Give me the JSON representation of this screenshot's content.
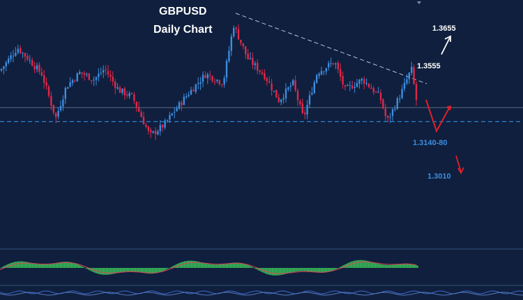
{
  "chart_data": {
    "type": "candlestick",
    "symbol": "GBPUSD",
    "title": "GBPUSD",
    "subtitle": "Daily Chart",
    "ylim": [
      1.29,
      1.378
    ],
    "levels": [
      {
        "label": "1.3655",
        "value": 1.3655,
        "style": "white-arrow-up"
      },
      {
        "label": "1.3555",
        "value": 1.3555,
        "style": "trendline"
      },
      {
        "label": "1.3140-80",
        "value": 1.316,
        "style": "dashed-support"
      },
      {
        "label": "1.3010",
        "value": 1.301,
        "style": "red-arrow-down"
      }
    ],
    "horizontal_line": 1.324,
    "support_line": 1.316,
    "grid": false,
    "indicator": "MACD histogram (green) with signal line (red)",
    "series_waypoints": [
      [
        0,
        1.345
      ],
      [
        10,
        1.35
      ],
      [
        25,
        1.358
      ],
      [
        40,
        1.352
      ],
      [
        60,
        1.343
      ],
      [
        80,
        1.318
      ],
      [
        95,
        1.336
      ],
      [
        115,
        1.344
      ],
      [
        135,
        1.34
      ],
      [
        150,
        1.346
      ],
      [
        170,
        1.334
      ],
      [
        190,
        1.33
      ],
      [
        215,
        1.308
      ],
      [
        235,
        1.314
      ],
      [
        250,
        1.322
      ],
      [
        270,
        1.332
      ],
      [
        295,
        1.343
      ],
      [
        320,
        1.338
      ],
      [
        335,
        1.371
      ],
      [
        355,
        1.352
      ],
      [
        380,
        1.342
      ],
      [
        400,
        1.328
      ],
      [
        420,
        1.338
      ],
      [
        435,
        1.318
      ],
      [
        455,
        1.344
      ],
      [
        480,
        1.35
      ],
      [
        495,
        1.334
      ],
      [
        520,
        1.34
      ],
      [
        545,
        1.33
      ],
      [
        555,
        1.316
      ],
      [
        575,
        1.332
      ],
      [
        590,
        1.346
      ],
      [
        598,
        1.326
      ]
    ],
    "colors": {
      "background": "#0f1f3d",
      "bull": "#3d8de0",
      "bear": "#e0284a",
      "macd_hist": "#3bc259",
      "macd_signal": "#e0405a",
      "support": "#2a82d6",
      "trendline": "#c0c8d8",
      "arrow_up": "#ffffff",
      "arrow_down": "#e0202a"
    }
  },
  "labels": {
    "title_line1": "GBPUSD",
    "title_line2": "Daily Chart",
    "lvl_3655": "1.3655",
    "lvl_3555": "1.3555",
    "lvl_3140": "1.3140-80",
    "lvl_3010": "1.3010"
  }
}
